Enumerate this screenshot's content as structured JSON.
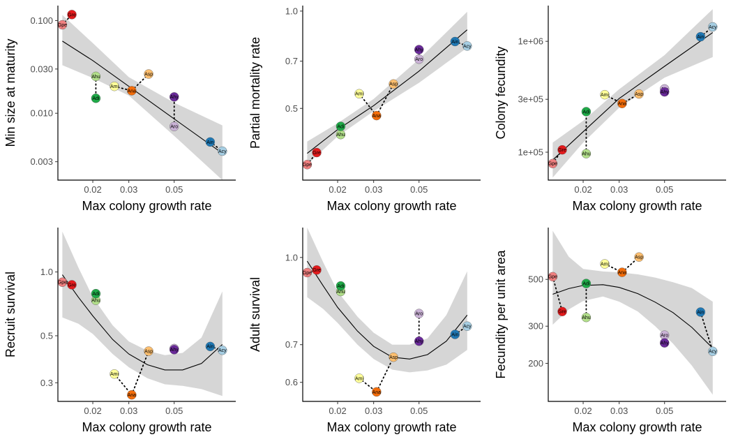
{
  "species_colors": {
    "Gpe": "#f08080",
    "Gre": "#e41a1c",
    "Ahu": "#b2df8a",
    "Adi": "#1faa48",
    "Ami": "#ffff99",
    "Ana": "#f46d0a",
    "Asp": "#fdbf6f",
    "Aro": "#cab2d6",
    "Ahy": "#6a2a9a",
    "Ain": "#1f78b4",
    "Acy": "#a6cee3"
  },
  "chart_data": [
    {
      "type": "scatter",
      "xlabel": "Max colony growth rate",
      "ylabel": "Min size at maturity",
      "xscale": "log",
      "yscale": "log",
      "xticks": [
        0.02,
        0.03,
        0.05
      ],
      "xtick_labels": [
        "0.02",
        "0.03",
        "0.05"
      ],
      "yticks": [
        0.003,
        0.01,
        0.03,
        0.1
      ],
      "ytick_labels": [
        "0.003",
        "0.010",
        "0.030",
        "0.100"
      ],
      "xlim": [
        0.0135,
        0.1
      ],
      "ylim": [
        0.0019,
        0.145
      ],
      "points": [
        {
          "label": "Gpe",
          "x": 0.0142,
          "y": 0.09
        },
        {
          "label": "Gre",
          "x": 0.0158,
          "y": 0.116
        },
        {
          "label": "Ahu",
          "x": 0.0207,
          "y": 0.025
        },
        {
          "label": "Adi",
          "x": 0.0207,
          "y": 0.0145
        },
        {
          "label": "Ami",
          "x": 0.0255,
          "y": 0.0195
        },
        {
          "label": "Ana",
          "x": 0.031,
          "y": 0.0175
        },
        {
          "label": "Asp",
          "x": 0.0375,
          "y": 0.0265
        },
        {
          "label": "Aro",
          "x": 0.05,
          "y": 0.0072
        },
        {
          "label": "Ahy",
          "x": 0.05,
          "y": 0.015
        },
        {
          "label": "Ain",
          "x": 0.075,
          "y": 0.0049
        },
        {
          "label": "Acy",
          "x": 0.086,
          "y": 0.0039
        }
      ],
      "pairs": [
        [
          "Gpe",
          "Gre"
        ],
        [
          "Ahu",
          "Adi"
        ],
        [
          "Ami",
          "Ana"
        ],
        [
          "Ana",
          "Asp"
        ],
        [
          "Aro",
          "Ahy"
        ],
        [
          "Ain",
          "Acy"
        ]
      ],
      "fit": [
        [
          0.0142,
          0.06
        ],
        [
          0.02,
          0.037
        ],
        [
          0.03,
          0.0195
        ],
        [
          0.05,
          0.0087
        ],
        [
          0.086,
          0.0037
        ]
      ],
      "band": [
        [
          0.0142,
          0.033,
          0.115
        ],
        [
          0.02,
          0.024,
          0.057
        ],
        [
          0.03,
          0.0155,
          0.0245
        ],
        [
          0.05,
          0.0057,
          0.013
        ],
        [
          0.086,
          0.0019,
          0.0074
        ]
      ]
    },
    {
      "type": "scatter",
      "xlabel": "Max colony growth rate",
      "ylabel": "Partial mortality rate",
      "xscale": "log",
      "yscale": "log",
      "xticks": [
        0.02,
        0.03,
        0.05
      ],
      "xtick_labels": [
        "0.02",
        "0.03",
        "0.05"
      ],
      "yticks": [
        0.5,
        0.7,
        1.0
      ],
      "ytick_labels": [
        "0.5",
        "0.7",
        "1.0"
      ],
      "xlim": [
        0.0135,
        0.1
      ],
      "ylim": [
        0.3,
        1.04
      ],
      "points": [
        {
          "label": "Gpe",
          "x": 0.0142,
          "y": 0.335
        },
        {
          "label": "Gre",
          "x": 0.0158,
          "y": 0.365
        },
        {
          "label": "Ahu",
          "x": 0.0207,
          "y": 0.415
        },
        {
          "label": "Adi",
          "x": 0.0207,
          "y": 0.44
        },
        {
          "label": "Ami",
          "x": 0.0255,
          "y": 0.555
        },
        {
          "label": "Ana",
          "x": 0.031,
          "y": 0.475
        },
        {
          "label": "Asp",
          "x": 0.0375,
          "y": 0.595
        },
        {
          "label": "Aro",
          "x": 0.05,
          "y": 0.71
        },
        {
          "label": "Ahy",
          "x": 0.05,
          "y": 0.76
        },
        {
          "label": "Ain",
          "x": 0.075,
          "y": 0.805
        },
        {
          "label": "Acy",
          "x": 0.086,
          "y": 0.78
        }
      ],
      "pairs": [
        [
          "Gpe",
          "Gre"
        ],
        [
          "Ahu",
          "Adi"
        ],
        [
          "Ami",
          "Ana"
        ],
        [
          "Ana",
          "Asp"
        ],
        [
          "Aro",
          "Ahy"
        ],
        [
          "Ain",
          "Acy"
        ]
      ],
      "fit": [
        [
          0.0142,
          0.363
        ],
        [
          0.02,
          0.43
        ],
        [
          0.03,
          0.51
        ],
        [
          0.05,
          0.652
        ],
        [
          0.086,
          0.875
        ]
      ],
      "band": [
        [
          0.0142,
          0.335,
          0.395
        ],
        [
          0.02,
          0.41,
          0.45
        ],
        [
          0.03,
          0.49,
          0.535
        ],
        [
          0.05,
          0.6,
          0.71
        ],
        [
          0.086,
          0.77,
          0.995
        ]
      ]
    },
    {
      "type": "scatter",
      "xlabel": "Max colony growth rate",
      "ylabel": "Colony fecundity",
      "xscale": "log",
      "yscale": "log",
      "xticks": [
        0.02,
        0.03,
        0.05
      ],
      "xtick_labels": [
        "0.02",
        "0.03",
        "0.05"
      ],
      "yticks": [
        100000,
        300000,
        1000000
      ],
      "ytick_labels": [
        "1e+05",
        "3e+05",
        "1e+06"
      ],
      "xlim": [
        0.0135,
        0.1
      ],
      "ylim": [
        56000,
        2100000
      ],
      "points": [
        {
          "label": "Gpe",
          "x": 0.0142,
          "y": 79000
        },
        {
          "label": "Gre",
          "x": 0.0158,
          "y": 105000
        },
        {
          "label": "Ahu",
          "x": 0.0207,
          "y": 97000
        },
        {
          "label": "Adi",
          "x": 0.0207,
          "y": 232000
        },
        {
          "label": "Ami",
          "x": 0.0255,
          "y": 330000
        },
        {
          "label": "Ana",
          "x": 0.031,
          "y": 275000
        },
        {
          "label": "Asp",
          "x": 0.0375,
          "y": 335000
        },
        {
          "label": "Aro",
          "x": 0.05,
          "y": 372000
        },
        {
          "label": "Ahy",
          "x": 0.05,
          "y": 350000
        },
        {
          "label": "Ain",
          "x": 0.075,
          "y": 1100000
        },
        {
          "label": "Acy",
          "x": 0.086,
          "y": 1350000
        }
      ],
      "pairs": [
        [
          "Gpe",
          "Gre"
        ],
        [
          "Ahu",
          "Adi"
        ],
        [
          "Ami",
          "Ana"
        ],
        [
          "Ana",
          "Asp"
        ],
        [
          "Aro",
          "Ahy"
        ],
        [
          "Ain",
          "Acy"
        ]
      ],
      "fit": [
        [
          0.0142,
          85000
        ],
        [
          0.02,
          153000
        ],
        [
          0.03,
          305000
        ],
        [
          0.05,
          595000
        ],
        [
          0.086,
          1200000
        ]
      ],
      "band": [
        [
          0.0142,
          59000,
          122000
        ],
        [
          0.02,
          122000,
          192000
        ],
        [
          0.03,
          252000,
          370000
        ],
        [
          0.05,
          470000,
          750000
        ],
        [
          0.086,
          720000,
          1950000
        ]
      ]
    },
    {
      "type": "scatter",
      "xlabel": "Max colony growth rate",
      "ylabel": "Recruit survival",
      "xscale": "log",
      "yscale": "log",
      "xticks": [
        0.02,
        0.03,
        0.05
      ],
      "xtick_labels": [
        "0.02",
        "0.03",
        "0.05"
      ],
      "yticks": [
        0.3,
        0.5,
        1.0
      ],
      "ytick_labels": [
        "0.3",
        "0.5",
        "1.0"
      ],
      "xlim": [
        0.0135,
        0.1
      ],
      "ylim": [
        0.245,
        1.62
      ],
      "points": [
        {
          "label": "Gpe",
          "x": 0.0142,
          "y": 0.895
        },
        {
          "label": "Gre",
          "x": 0.0158,
          "y": 0.87
        },
        {
          "label": "Ahu",
          "x": 0.0207,
          "y": 0.735
        },
        {
          "label": "Adi",
          "x": 0.0207,
          "y": 0.79
        },
        {
          "label": "Ami",
          "x": 0.0255,
          "y": 0.33
        },
        {
          "label": "Ana",
          "x": 0.031,
          "y": 0.263
        },
        {
          "label": "Asp",
          "x": 0.0375,
          "y": 0.423
        },
        {
          "label": "Aro",
          "x": 0.05,
          "y": 0.435
        },
        {
          "label": "Ahy",
          "x": 0.05,
          "y": 0.43
        },
        {
          "label": "Ain",
          "x": 0.075,
          "y": 0.445
        },
        {
          "label": "Acy",
          "x": 0.086,
          "y": 0.427
        }
      ],
      "pairs": [
        [
          "Gpe",
          "Gre"
        ],
        [
          "Ahu",
          "Adi"
        ],
        [
          "Ami",
          "Ana"
        ],
        [
          "Ana",
          "Asp"
        ],
        [
          "Aro",
          "Ahy"
        ],
        [
          "Ain",
          "Acy"
        ]
      ],
      "fit": [
        [
          0.0142,
          0.97
        ],
        [
          0.017,
          0.76
        ],
        [
          0.02,
          0.62
        ],
        [
          0.025,
          0.48
        ],
        [
          0.03,
          0.41
        ],
        [
          0.037,
          0.365
        ],
        [
          0.045,
          0.345
        ],
        [
          0.055,
          0.345
        ],
        [
          0.068,
          0.37
        ],
        [
          0.086,
          0.455
        ]
      ],
      "band": [
        [
          0.0142,
          0.61,
          1.55
        ],
        [
          0.017,
          0.57,
          1.05
        ],
        [
          0.02,
          0.51,
          0.76
        ],
        [
          0.025,
          0.41,
          0.56
        ],
        [
          0.03,
          0.355,
          0.47
        ],
        [
          0.037,
          0.315,
          0.425
        ],
        [
          0.045,
          0.295,
          0.405
        ],
        [
          0.055,
          0.29,
          0.415
        ],
        [
          0.068,
          0.28,
          0.49
        ],
        [
          0.086,
          0.26,
          0.81
        ]
      ]
    },
    {
      "type": "scatter",
      "xlabel": "Max colony growth rate",
      "ylabel": "Adult survival",
      "xscale": "log",
      "yscale": "log",
      "xticks": [
        0.02,
        0.03,
        0.05
      ],
      "xtick_labels": [
        "0.02",
        "0.03",
        "0.05"
      ],
      "yticks": [
        0.6,
        0.7,
        1.0
      ],
      "ytick_labels": [
        "0.6",
        "0.7",
        "1.0"
      ],
      "xlim": [
        0.0135,
        0.1
      ],
      "ylim": [
        0.555,
        1.13
      ],
      "points": [
        {
          "label": "Gpe",
          "x": 0.0142,
          "y": 0.94
        },
        {
          "label": "Gre",
          "x": 0.0158,
          "y": 0.95
        },
        {
          "label": "Ahu",
          "x": 0.0207,
          "y": 0.87
        },
        {
          "label": "Adi",
          "x": 0.0207,
          "y": 0.89
        },
        {
          "label": "Ami",
          "x": 0.0255,
          "y": 0.61
        },
        {
          "label": "Ana",
          "x": 0.031,
          "y": 0.577
        },
        {
          "label": "Asp",
          "x": 0.0375,
          "y": 0.665
        },
        {
          "label": "Aro",
          "x": 0.05,
          "y": 0.795
        },
        {
          "label": "Ahy",
          "x": 0.05,
          "y": 0.71
        },
        {
          "label": "Ain",
          "x": 0.075,
          "y": 0.73
        },
        {
          "label": "Acy",
          "x": 0.086,
          "y": 0.755
        }
      ],
      "pairs": [
        [
          "Gpe",
          "Gre"
        ],
        [
          "Ahu",
          "Adi"
        ],
        [
          "Ami",
          "Ana"
        ],
        [
          "Ana",
          "Asp"
        ],
        [
          "Aro",
          "Ahy"
        ],
        [
          "Ain",
          "Acy"
        ]
      ],
      "fit": [
        [
          0.0142,
          0.985
        ],
        [
          0.017,
          0.89
        ],
        [
          0.02,
          0.815
        ],
        [
          0.025,
          0.74
        ],
        [
          0.03,
          0.695
        ],
        [
          0.037,
          0.665
        ],
        [
          0.045,
          0.66
        ],
        [
          0.055,
          0.672
        ],
        [
          0.068,
          0.71
        ],
        [
          0.086,
          0.79
        ]
      ],
      "band": [
        [
          0.0142,
          0.85,
          1.13
        ],
        [
          0.017,
          0.81,
          0.98
        ],
        [
          0.02,
          0.765,
          0.87
        ],
        [
          0.025,
          0.7,
          0.785
        ],
        [
          0.03,
          0.66,
          0.735
        ],
        [
          0.037,
          0.632,
          0.7
        ],
        [
          0.045,
          0.625,
          0.7
        ],
        [
          0.055,
          0.63,
          0.718
        ],
        [
          0.068,
          0.645,
          0.79
        ],
        [
          0.086,
          0.685,
          0.945
        ]
      ]
    },
    {
      "type": "scatter",
      "xlabel": "Max colony growth rate",
      "ylabel": "Fecundity per unit area",
      "xscale": "log",
      "yscale": "log",
      "xticks": [
        0.02,
        0.03,
        0.05
      ],
      "xtick_labels": [
        "0.02",
        "0.03",
        "0.05"
      ],
      "yticks": [
        200,
        300,
        500
      ],
      "ytick_labels": [
        "200",
        "300",
        "500"
      ],
      "xlim": [
        0.0135,
        0.1
      ],
      "ylim": [
        132,
        880
      ],
      "points": [
        {
          "label": "Gpe",
          "x": 0.0142,
          "y": 515
        },
        {
          "label": "Gre",
          "x": 0.0158,
          "y": 352
        },
        {
          "label": "Ahu",
          "x": 0.0207,
          "y": 330
        },
        {
          "label": "Adi",
          "x": 0.0207,
          "y": 478
        },
        {
          "label": "Ami",
          "x": 0.0255,
          "y": 592
        },
        {
          "label": "Ana",
          "x": 0.031,
          "y": 540
        },
        {
          "label": "Asp",
          "x": 0.0375,
          "y": 638
        },
        {
          "label": "Aro",
          "x": 0.05,
          "y": 272
        },
        {
          "label": "Ahy",
          "x": 0.05,
          "y": 250
        },
        {
          "label": "Ain",
          "x": 0.075,
          "y": 350
        },
        {
          "label": "Acy",
          "x": 0.086,
          "y": 228
        }
      ],
      "pairs": [
        [
          "Gpe",
          "Gre"
        ],
        [
          "Ahu",
          "Adi"
        ],
        [
          "Ami",
          "Ana"
        ],
        [
          "Ana",
          "Asp"
        ],
        [
          "Aro",
          "Ahy"
        ],
        [
          "Ain",
          "Acy"
        ]
      ],
      "fit": [
        [
          0.0142,
          425
        ],
        [
          0.017,
          452
        ],
        [
          0.02,
          468
        ],
        [
          0.025,
          472
        ],
        [
          0.03,
          458
        ],
        [
          0.037,
          428
        ],
        [
          0.045,
          390
        ],
        [
          0.055,
          348
        ],
        [
          0.068,
          296
        ],
        [
          0.086,
          236
        ]
      ],
      "band": [
        [
          0.0142,
          305,
          850
        ],
        [
          0.017,
          360,
          640
        ],
        [
          0.02,
          395,
          560
        ],
        [
          0.025,
          415,
          545
        ],
        [
          0.03,
          392,
          540
        ],
        [
          0.037,
          352,
          528
        ],
        [
          0.045,
          300,
          510
        ],
        [
          0.055,
          248,
          485
        ],
        [
          0.068,
          195,
          455
        ],
        [
          0.086,
          142,
          392
        ]
      ]
    }
  ]
}
